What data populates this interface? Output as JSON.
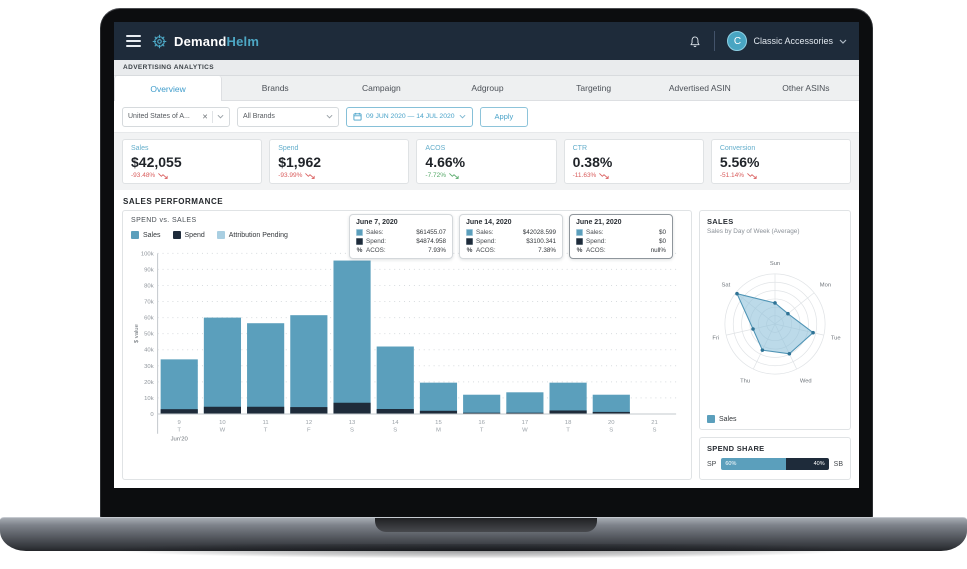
{
  "navbar": {
    "brand_bold": "Demand",
    "brand_accent": "Helm",
    "avatar_letter": "C",
    "account_name": "Classic Accessories"
  },
  "ribbon_label": "ADVERTISING ANALYTICS",
  "tabs": [
    {
      "label": "Overview",
      "active": true
    },
    {
      "label": "Brands",
      "active": false
    },
    {
      "label": "Campaign",
      "active": false
    },
    {
      "label": "Adgroup",
      "active": false
    },
    {
      "label": "Targeting",
      "active": false
    },
    {
      "label": "Advertised ASIN",
      "active": false
    },
    {
      "label": "Other ASINs",
      "active": false
    }
  ],
  "filters": {
    "marketplace": "United States of A...",
    "brand": "All Brands",
    "date_range": "09 JUN 2020 — 14 JUL 2020",
    "apply_label": "Apply"
  },
  "kpis": [
    {
      "label": "Sales",
      "value": "$42,055",
      "delta": "-93.48%",
      "tone": "bad"
    },
    {
      "label": "Spend",
      "value": "$1,962",
      "delta": "-93.99%",
      "tone": "bad"
    },
    {
      "label": "ACOS",
      "value": "4.66%",
      "delta": "-7.72%",
      "tone": "good"
    },
    {
      "label": "CTR",
      "value": "0.38%",
      "delta": "-11.63%",
      "tone": "bad"
    },
    {
      "label": "Conversion",
      "value": "5.56%",
      "delta": "-51.14%",
      "tone": "bad"
    }
  ],
  "section_title": "SALES PERFORMANCE",
  "main_chart": {
    "title": "SPEND vs. SALES",
    "legend": [
      {
        "label": "Sales",
        "color": "#5b9fbc"
      },
      {
        "label": "Spend",
        "color": "#1e2b3a"
      },
      {
        "label": "Attribution Pending",
        "color": "#a9cfe2"
      }
    ],
    "row_labels": {
      "sales": "Sales:",
      "spend": "Spend:",
      "acos": "ACOS:"
    },
    "tooltips": [
      {
        "date": "June 7, 2020",
        "sales": "$61455.07",
        "spend": "$4874.958",
        "acos": "7.93%"
      },
      {
        "date": "June 14, 2020",
        "sales": "$42028.599",
        "spend": "$3100.341",
        "acos": "7.38%"
      },
      {
        "date": "June 21, 2020",
        "sales": "$0",
        "spend": "$0",
        "acos": "null%"
      }
    ]
  },
  "sales_panel": {
    "title": "SALES",
    "subtitle": "Sales by Day of Week (Average)",
    "legend_label": "Sales"
  },
  "spend_share": {
    "title": "SPEND SHARE",
    "left_label": "SP",
    "right_label": "SB"
  },
  "chart_data": [
    {
      "type": "bar",
      "title": "SPEND vs. SALES",
      "xlabel": "Jun'20",
      "ylabel": "$ value",
      "ylim": [
        0,
        100000
      ],
      "y_ticks": [
        "0",
        "10k",
        "20k",
        "30k",
        "40k",
        "50k",
        "60k",
        "70k",
        "80k",
        "90k",
        "100k"
      ],
      "grid": "dotted horizontal",
      "categories": [
        {
          "day": "9",
          "dow": "T"
        },
        {
          "day": "10",
          "dow": "W"
        },
        {
          "day": "11",
          "dow": "T"
        },
        {
          "day": "12",
          "dow": "F"
        },
        {
          "day": "13",
          "dow": "S"
        },
        {
          "day": "14",
          "dow": "S"
        },
        {
          "day": "15",
          "dow": "M"
        },
        {
          "day": "16",
          "dow": "T"
        },
        {
          "day": "17",
          "dow": "W"
        },
        {
          "day": "18",
          "dow": "T"
        },
        {
          "day": "20",
          "dow": "S"
        },
        {
          "day": "21",
          "dow": "S"
        }
      ],
      "month_label": "Jun'20",
      "series": [
        {
          "name": "Sales",
          "color": "#5b9fbc",
          "values": [
            34000,
            60000,
            56500,
            61500,
            95500,
            42000,
            19500,
            12000,
            13500,
            19500,
            12000,
            0
          ]
        },
        {
          "name": "Spend",
          "color": "#1e2b3a",
          "values": [
            3000,
            4500,
            4500,
            4300,
            7000,
            3100,
            2000,
            800,
            800,
            2200,
            1300,
            0
          ]
        }
      ]
    },
    {
      "type": "radar",
      "title": "Sales by Day of Week (Average)",
      "categories": [
        "Sun",
        "Mon",
        "Tue",
        "Wed",
        "Thu",
        "Fri",
        "Sat"
      ],
      "values": [
        0.42,
        0.33,
        0.78,
        0.66,
        0.58,
        0.45,
        0.97
      ],
      "scale_note": "fraction of outer ring",
      "rings": 6,
      "legend": [
        "Sales"
      ]
    },
    {
      "type": "bar",
      "title": "Spend Share",
      "categories": [
        "SP",
        "SB"
      ],
      "values": [
        60,
        40
      ],
      "unit": "%",
      "labels": [
        "60%",
        "40%"
      ],
      "colors": [
        "#5b9fbc",
        "#1e2b3a"
      ]
    }
  ],
  "colors": {
    "navy": "#1e2b3a",
    "steel_blue": "#5b9fbc",
    "light_blue": "#a9cfe2",
    "accent": "#4aa3c9",
    "red": "#d95c5c",
    "green": "#55a868"
  }
}
